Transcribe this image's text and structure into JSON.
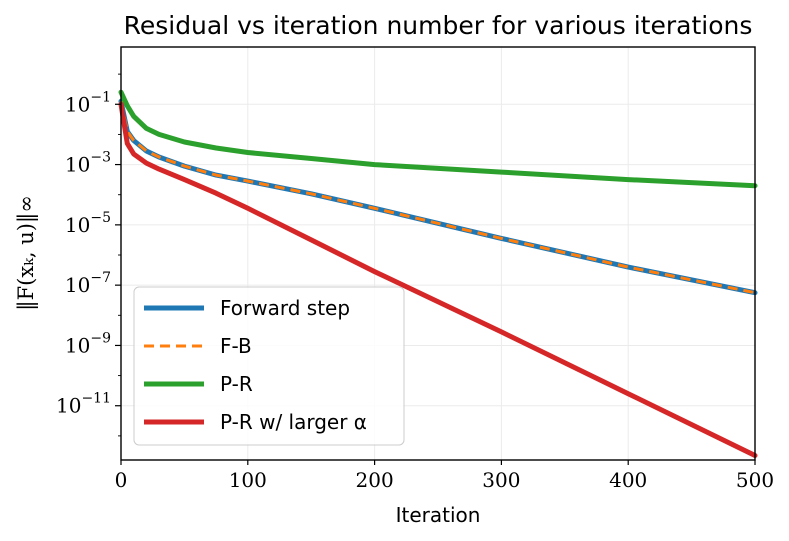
{
  "chart_data": {
    "type": "line",
    "title": "Residual vs iteration number for various iterations",
    "xlabel": "Iteration",
    "ylabel": "‖F(xₖ, u)‖∞",
    "xlim": [
      0,
      500
    ],
    "ylim_log10": [
      -12.8,
      0.9
    ],
    "yscale": "log",
    "grid": true,
    "legend_position": "lower-left",
    "xticks": [
      0,
      100,
      200,
      300,
      400,
      500
    ],
    "xtick_labels": [
      "0",
      "100",
      "200",
      "300",
      "400",
      "500"
    ],
    "ytick_exponents": [
      -1,
      -3,
      -5,
      -7,
      -9,
      -11
    ],
    "ytick_labels": [
      {
        "base": "10",
        "exp": "−1"
      },
      {
        "base": "10",
        "exp": "−3"
      },
      {
        "base": "10",
        "exp": "−5"
      },
      {
        "base": "10",
        "exp": "−7"
      },
      {
        "base": "10",
        "exp": "−9"
      },
      {
        "base": "10",
        "exp": "−11"
      }
    ],
    "series": [
      {
        "name": "Forward step",
        "color": "#1f77b4",
        "style": "solid",
        "x": [
          0,
          5,
          10,
          20,
          30,
          50,
          75,
          100,
          150,
          200,
          300,
          400,
          500
        ],
        "log10_y": [
          -0.9,
          -1.9,
          -2.2,
          -2.55,
          -2.75,
          -3.05,
          -3.35,
          -3.55,
          -3.97,
          -4.45,
          -5.45,
          -6.4,
          -7.25
        ]
      },
      {
        "name": "F-B",
        "color": "#ff7f0e",
        "style": "dashed",
        "x": [
          0,
          5,
          10,
          20,
          30,
          50,
          75,
          100,
          150,
          200,
          300,
          400,
          500
        ],
        "log10_y": [
          -0.9,
          -1.9,
          -2.2,
          -2.55,
          -2.75,
          -3.05,
          -3.35,
          -3.55,
          -3.97,
          -4.45,
          -5.45,
          -6.4,
          -7.25
        ]
      },
      {
        "name": "P-R",
        "color": "#2ca02c",
        "style": "solid",
        "x": [
          0,
          5,
          10,
          20,
          30,
          50,
          75,
          100,
          150,
          200,
          300,
          400,
          500
        ],
        "log10_y": [
          -0.6,
          -1.05,
          -1.4,
          -1.8,
          -2.0,
          -2.25,
          -2.45,
          -2.6,
          -2.8,
          -3.0,
          -3.25,
          -3.5,
          -3.7
        ]
      },
      {
        "name": "P-R w/ larger α",
        "color": "#d62728",
        "style": "solid",
        "x": [
          0,
          5,
          10,
          20,
          30,
          50,
          75,
          100,
          150,
          200,
          300,
          400,
          500
        ],
        "log10_y": [
          -1.0,
          -2.3,
          -2.65,
          -2.95,
          -3.15,
          -3.5,
          -3.95,
          -4.45,
          -5.5,
          -6.55,
          -8.55,
          -10.6,
          -12.65
        ]
      }
    ]
  }
}
